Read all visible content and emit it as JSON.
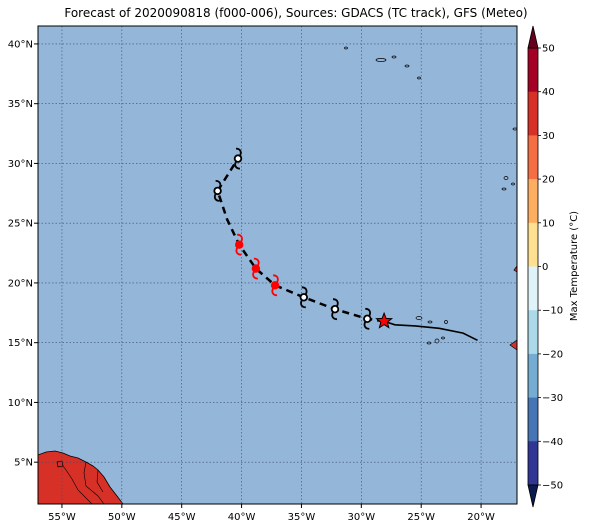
{
  "title": "Forecast of 2020090818 (f000-006), Sources: GDACS (TC track), GFS (Meteo)",
  "map": {
    "lon_range": [
      -57,
      -17
    ],
    "lat_range": [
      1.5,
      41.5
    ],
    "x_ticks": [
      "55°W",
      "50°W",
      "45°W",
      "40°W",
      "35°W",
      "30°W",
      "25°W",
      "20°W"
    ],
    "x_tick_values": [
      -55,
      -50,
      -45,
      -40,
      -35,
      -30,
      -25,
      -20
    ],
    "y_ticks": [
      "5°N",
      "10°N",
      "15°N",
      "20°N",
      "25°N",
      "30°N",
      "35°N",
      "40°N"
    ],
    "y_tick_values": [
      5,
      10,
      15,
      20,
      25,
      30,
      35,
      40
    ],
    "ocean_color": "#93b6d9",
    "land_color": "#d73027",
    "grid": true
  },
  "track": {
    "observed_line": [
      [
        -20.3,
        15.2
      ],
      [
        -21.5,
        15.8
      ],
      [
        -23.5,
        16.2
      ],
      [
        -25.5,
        16.4
      ],
      [
        -27.2,
        16.5
      ],
      [
        -28.1,
        16.8
      ]
    ],
    "current_position": [
      -28.1,
      16.8
    ],
    "forecast_line": [
      [
        -28.1,
        16.8
      ],
      [
        -29.5,
        17.0
      ],
      [
        -32.2,
        17.8
      ],
      [
        -34.8,
        18.8
      ],
      [
        -37.2,
        19.8
      ],
      [
        -38.8,
        21.2
      ],
      [
        -40.2,
        23.2
      ],
      [
        -41.2,
        25.3
      ],
      [
        -42.0,
        27.7
      ],
      [
        -40.3,
        30.4
      ]
    ],
    "symbols": [
      {
        "lon": -29.5,
        "lat": 17.0,
        "color": "#000000",
        "type": "storm-symbol"
      },
      {
        "lon": -32.2,
        "lat": 17.8,
        "color": "#000000",
        "type": "storm-symbol"
      },
      {
        "lon": -34.8,
        "lat": 18.8,
        "color": "#000000",
        "type": "storm-symbol"
      },
      {
        "lon": -37.2,
        "lat": 19.8,
        "color": "#ff0000",
        "type": "hurricane-symbol"
      },
      {
        "lon": -38.8,
        "lat": 21.2,
        "color": "#ff0000",
        "type": "hurricane-symbol"
      },
      {
        "lon": -40.2,
        "lat": 23.2,
        "color": "#ff0000",
        "type": "hurricane-symbol"
      },
      {
        "lon": -42.0,
        "lat": 27.7,
        "color": "#000000",
        "type": "storm-symbol"
      },
      {
        "lon": -40.3,
        "lat": 30.4,
        "color": "#000000",
        "type": "storm-symbol"
      }
    ]
  },
  "colorbar": {
    "label": "Max Temperature (°C)",
    "ticks": [
      "50",
      "40",
      "30",
      "20",
      "10",
      "0",
      "−10",
      "−20",
      "−30",
      "−40",
      "−50"
    ],
    "colors": [
      "#a50026",
      "#d73027",
      "#f46d43",
      "#fdae61",
      "#fee090",
      "#ffffbf",
      "#e0f3f8",
      "#abd9e9",
      "#74add1",
      "#4575b4",
      "#313695"
    ]
  }
}
